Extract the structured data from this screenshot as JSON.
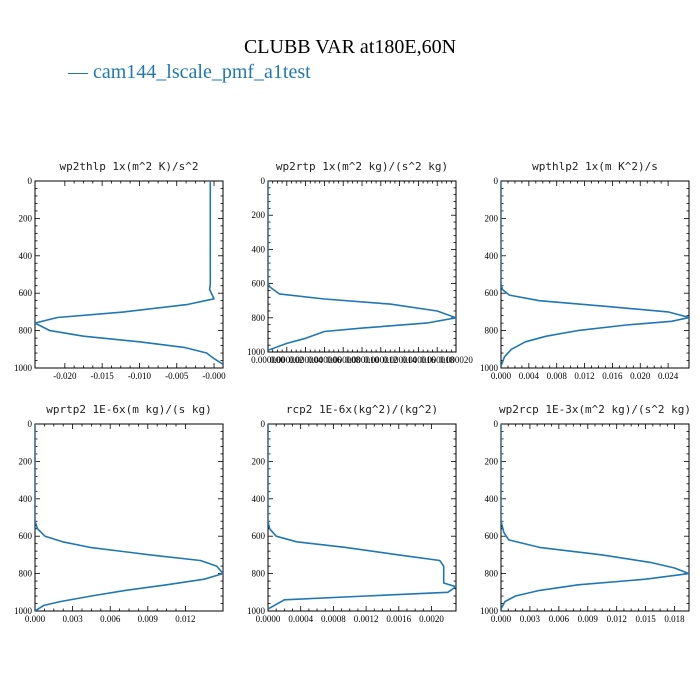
{
  "figure": {
    "title": "CLUBB VAR at180E,60N",
    "legend_label": "— cam144_lscale_pmf_a1test",
    "series_color": "#1f77b4"
  },
  "chart_data": [
    {
      "type": "line",
      "title": "wp2thlp   1x(m^2 K)/s^2",
      "ylim": [
        1000,
        0
      ],
      "yticks": [
        0,
        200,
        400,
        600,
        800,
        1000
      ],
      "xlim": [
        -0.024,
        0.0012
      ],
      "xticks": [
        -0.02,
        -0.015,
        -0.01,
        -0.005,
        0.0
      ],
      "xtick_labels": [
        "-0.020",
        "-0.015",
        "-0.010",
        "-0.005",
        "-0.000"
      ],
      "series": [
        {
          "x": [
            -0.0005,
            -0.0005,
            -0.0005,
            -0.0005,
            -0.0005,
            -0.0005,
            -0.0005,
            -0.0006,
            0.0,
            -0.0035,
            -0.012,
            -0.021,
            -0.024,
            -0.022,
            -0.0175,
            -0.01,
            -0.004,
            -0.001,
            0.0,
            0.0012
          ],
          "y": [
            0,
            100,
            200,
            300,
            400,
            500,
            550,
            580,
            630,
            660,
            700,
            730,
            760,
            800,
            830,
            860,
            890,
            920,
            950,
            980
          ]
        }
      ]
    },
    {
      "type": "line",
      "title": "wp2rtp   1x(m^2 kg)/(s^2 kg)",
      "ylim": [
        1000,
        0
      ],
      "yticks": [
        0,
        200,
        400,
        600,
        800,
        1000
      ],
      "xlim": [
        0.0,
        2e-05
      ],
      "xticks": [
        0.0,
        2e-06,
        4e-06,
        6e-06,
        8e-06,
        1e-05,
        1.2e-05,
        1.4e-05,
        1.6e-05,
        1.8e-05,
        2e-05
      ],
      "xtick_labels": [
        "0.000000",
        "0.000002",
        "0.000004",
        "0.000006",
        "0.000008",
        "0.000010",
        "0.000012",
        "0.000014",
        "0.000016",
        "0.000018",
        "0.000020"
      ],
      "series": [
        {
          "x": [
            0.0,
            0.0,
            0.0,
            0.0,
            0.0,
            2e-07,
            1.2e-06,
            6e-06,
            1.3e-05,
            1.8e-05,
            2e-05,
            1.7e-05,
            1e-05,
            6e-06,
            5e-06,
            4e-06,
            2e-06,
            0.0
          ],
          "y": [
            0,
            200,
            400,
            550,
            600,
            620,
            660,
            690,
            720,
            760,
            800,
            830,
            860,
            880,
            900,
            920,
            950,
            990
          ]
        }
      ]
    },
    {
      "type": "line",
      "title": "wpthlp2   1x(m K^2)/s",
      "ylim": [
        1000,
        0
      ],
      "yticks": [
        0,
        200,
        400,
        600,
        800,
        1000
      ],
      "xlim": [
        0.0,
        0.027
      ],
      "xticks": [
        0.0,
        0.004,
        0.008,
        0.012,
        0.016,
        0.02,
        0.024
      ],
      "xtick_labels": [
        "0.000",
        "0.004",
        "0.008",
        "0.012",
        "0.016",
        "0.020",
        "0.024"
      ],
      "series": [
        {
          "x": [
            0.0,
            0.0,
            0.0,
            0.0,
            0.0002,
            0.0012,
            0.0055,
            0.015,
            0.024,
            0.027,
            0.0245,
            0.018,
            0.011,
            0.0065,
            0.0035,
            0.0015,
            0.0005,
            0.0
          ],
          "y": [
            0,
            200,
            400,
            550,
            580,
            610,
            640,
            670,
            700,
            730,
            750,
            770,
            800,
            830,
            860,
            900,
            940,
            990
          ]
        }
      ]
    },
    {
      "type": "line",
      "title": "wprtp2   1E-6x(m kg)/(s kg)",
      "ylim": [
        1000,
        0
      ],
      "yticks": [
        0,
        200,
        400,
        600,
        800,
        1000
      ],
      "xlim": [
        0.0,
        0.015
      ],
      "xticks": [
        0.0,
        0.003,
        0.006,
        0.009,
        0.012
      ],
      "xtick_labels": [
        "0.000",
        "0.003",
        "0.006",
        "0.009",
        "0.012"
      ],
      "series": [
        {
          "x": [
            0.0,
            0.0,
            0.0,
            0.0,
            0.0002,
            0.0008,
            0.0022,
            0.0044,
            0.0092,
            0.0132,
            0.0145,
            0.015,
            0.0135,
            0.0105,
            0.0072,
            0.0045,
            0.002,
            0.0007,
            0.0
          ],
          "y": [
            0,
            200,
            400,
            520,
            560,
            600,
            630,
            660,
            700,
            730,
            760,
            800,
            830,
            860,
            890,
            920,
            950,
            970,
            1000
          ]
        }
      ]
    },
    {
      "type": "line",
      "title": "rcp2   1E-6x(kg^2)/(kg^2)",
      "ylim": [
        1000,
        0
      ],
      "yticks": [
        0,
        200,
        400,
        600,
        800,
        1000
      ],
      "xlim": [
        0.0,
        0.0023
      ],
      "xticks": [
        0.0,
        0.0004,
        0.0008,
        0.0012,
        0.0016,
        0.002
      ],
      "xtick_labels": [
        "0.0000",
        "0.0004",
        "0.0008",
        "0.0012",
        "0.0016",
        "0.0020"
      ],
      "series": [
        {
          "x": [
            0.0,
            0.0,
            0.0,
            0.0,
            2e-05,
            0.0001,
            0.00035,
            0.00095,
            0.0016,
            0.0021,
            0.00215,
            0.00215,
            0.0023,
            0.0022,
            0.0012,
            0.0002,
            0.0
          ],
          "y": [
            0,
            200,
            400,
            520,
            560,
            600,
            630,
            660,
            700,
            730,
            760,
            850,
            870,
            900,
            920,
            940,
            990
          ]
        }
      ]
    },
    {
      "type": "line",
      "title": "wp2rcp   1E-3x(m^2 kg)/(s^2 kg)",
      "ylim": [
        1000,
        0
      ],
      "yticks": [
        0,
        200,
        400,
        600,
        800,
        1000
      ],
      "xlim": [
        0.0,
        0.0195
      ],
      "xticks": [
        0.0,
        0.003,
        0.006,
        0.009,
        0.012,
        0.015,
        0.018
      ],
      "xtick_labels": [
        "0.000",
        "0.003",
        "0.006",
        "0.009",
        "0.012",
        "0.015",
        "0.018"
      ],
      "series": [
        {
          "x": [
            0.0,
            0.0,
            0.0,
            0.0,
            0.0003,
            0.0008,
            0.004,
            0.0105,
            0.0155,
            0.018,
            0.0195,
            0.015,
            0.008,
            0.004,
            0.0015,
            0.0004,
            0.0
          ],
          "y": [
            0,
            200,
            400,
            520,
            580,
            620,
            660,
            700,
            740,
            770,
            800,
            830,
            860,
            890,
            920,
            950,
            990
          ]
        }
      ]
    }
  ]
}
